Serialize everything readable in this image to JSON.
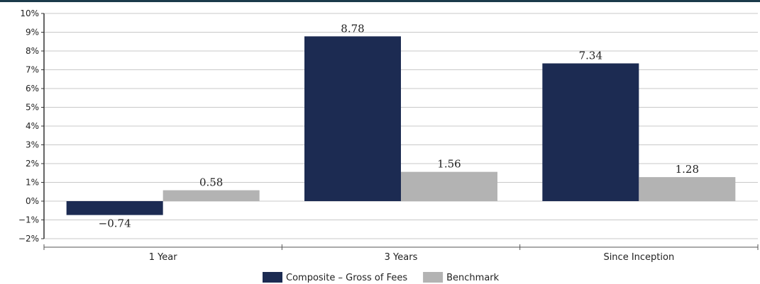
{
  "chart_data": {
    "type": "bar",
    "title": "",
    "categories": [
      "1 Year",
      "3 Years",
      "Since Inception"
    ],
    "series": [
      {
        "name": "Composite – Gross of Fees",
        "color": "#1c2b52",
        "values": [
          -0.74,
          8.78,
          7.34
        ]
      },
      {
        "name": "Benchmark",
        "color": "#b3b3b3",
        "values": [
          0.58,
          1.56,
          1.28
        ]
      }
    ],
    "data_labels": [
      [
        "−0.74",
        "8.78",
        "7.34"
      ],
      [
        "0.58",
        "1.56",
        "1.28"
      ]
    ],
    "y_ticks": [
      "10%",
      "9%",
      "8%",
      "7%",
      "6%",
      "5%",
      "4%",
      "3%",
      "2%",
      "1%",
      "0%",
      "−1%",
      "−2%"
    ],
    "ylim": [
      -2,
      10
    ],
    "grid": true,
    "legend_position": "bottom-center"
  }
}
